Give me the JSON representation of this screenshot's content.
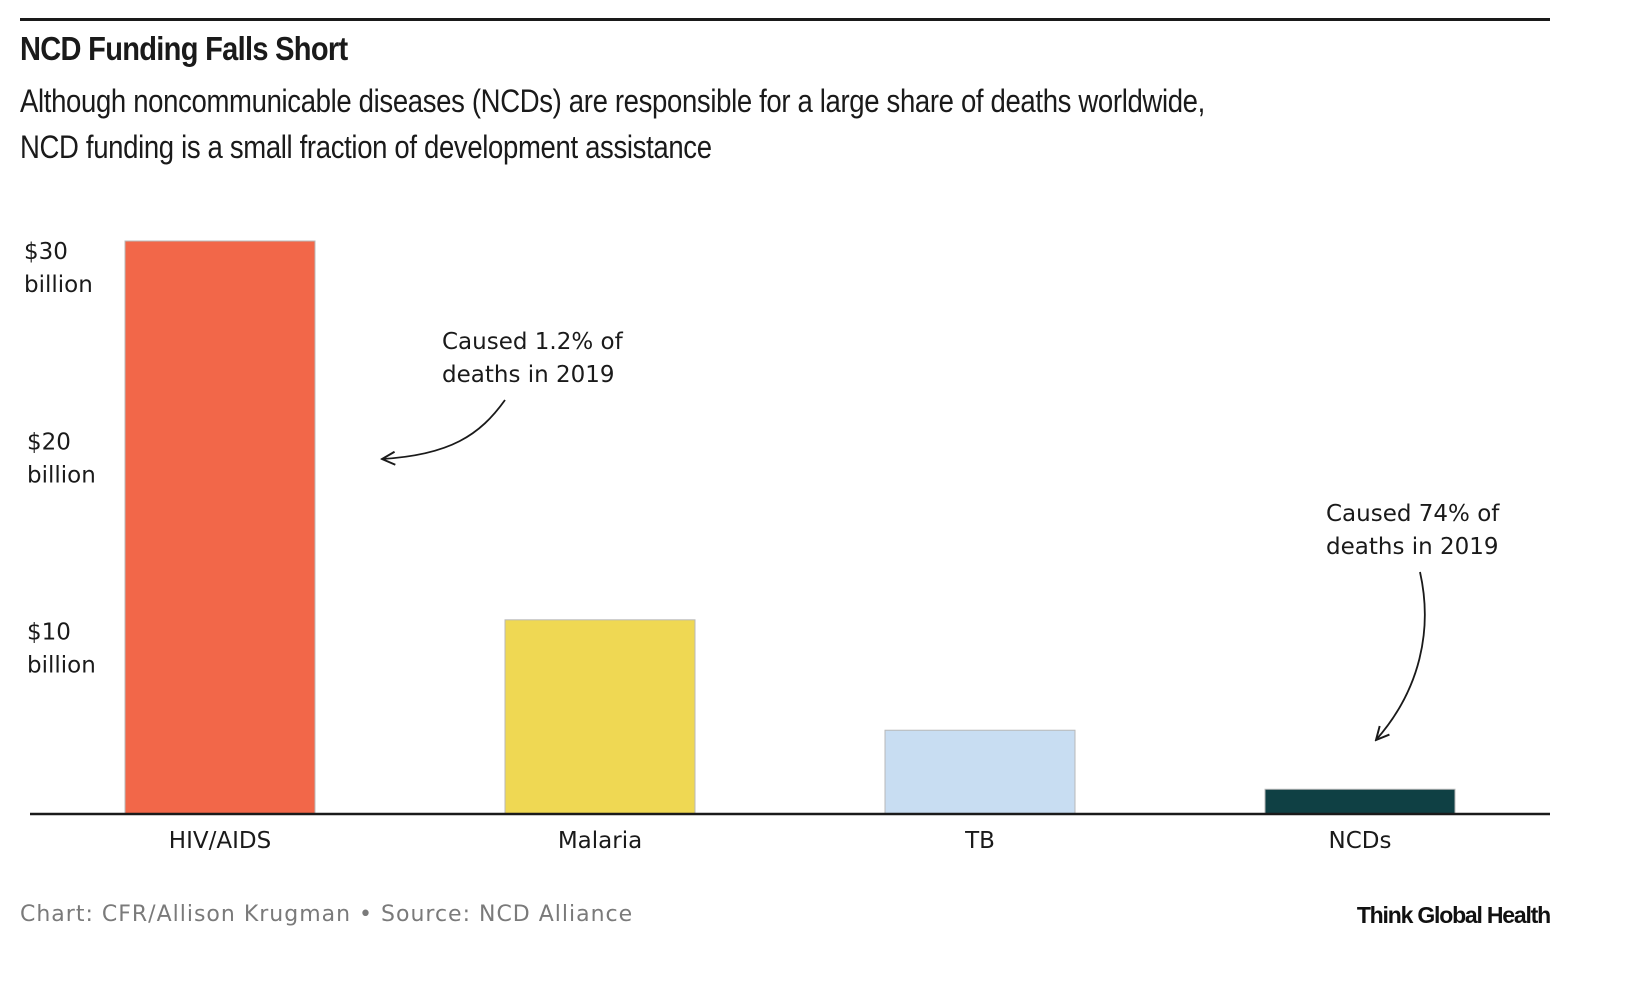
{
  "header": {
    "title": "NCD Funding Falls Short",
    "subtitle_lines": [
      "Although noncommunicable diseases (NCDs) are responsible for a large share of deaths worldwide,",
      "NCD funding is a small fraction of development assistance"
    ]
  },
  "footer": {
    "source": "Chart: CFR/Allison Krugman • Source: NCD Alliance",
    "brand": "Think Global Health"
  },
  "chart_data": {
    "type": "bar",
    "title": "NCD Funding Falls Short",
    "subtitle": "Although noncommunicable diseases (NCDs) are responsible for a large share of deaths worldwide, NCD funding is a small fraction of development assistance",
    "xlabel": "",
    "ylabel": "",
    "unit": "billion USD",
    "categories": [
      "HIV/AIDS",
      "Malaria",
      "TB",
      "NCDs"
    ],
    "values": [
      30.1,
      10.2,
      4.4,
      1.3
    ],
    "colors": [
      "#f26749",
      "#efd853",
      "#c8ddf2",
      "#0f4044"
    ],
    "ylim": [
      0,
      30.1
    ],
    "yticks": [
      {
        "value": 10,
        "line1": "$10",
        "line2": "billion"
      },
      {
        "value": 20,
        "line1": "$20",
        "line2": "billion"
      },
      {
        "value": 30,
        "line1": "$30",
        "line2": "billion"
      }
    ],
    "grid": false,
    "legend": "none",
    "annotations": [
      {
        "target": "HIV/AIDS",
        "lines": [
          "Caused 1.2% of",
          "deaths in 2019"
        ]
      },
      {
        "target": "NCDs",
        "lines": [
          "Caused 74% of",
          "deaths in 2019"
        ]
      }
    ]
  }
}
